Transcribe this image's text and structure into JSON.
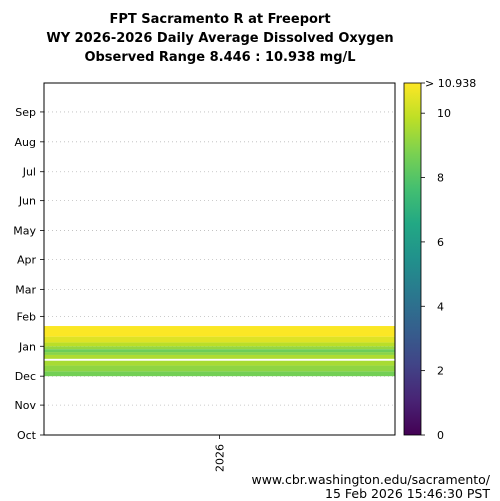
{
  "title": {
    "line1": "FPT Sacramento R at Freeport",
    "line2": "WY 2026-2026 Daily Average Dissolved Oxygen",
    "line3": "Observed Range 8.446 : 10.938 mg/L"
  },
  "footer": {
    "url": "www.cbr.washington.edu/sacramento/",
    "timestamp": "15 Feb 2026 15:46:30 PST"
  },
  "chart_data": {
    "type": "heatmap",
    "x": {
      "categories": [
        "2026"
      ]
    },
    "y": {
      "tick_labels": [
        "Oct",
        "Nov",
        "Dec",
        "Jan",
        "Feb",
        "Mar",
        "Apr",
        "May",
        "Jun",
        "Jul",
        "Aug",
        "Sep"
      ],
      "day_range": [
        0,
        365
      ]
    },
    "colorbar": {
      "colormap": "viridis",
      "range": [
        0,
        10.938
      ],
      "ticks": [
        0,
        2,
        4,
        6,
        8,
        10
      ],
      "max_label": "> 10.938"
    },
    "grid": "horizontal-dotted",
    "gap_days": [
      77,
      78
    ],
    "segments": [
      {
        "start_day": 61,
        "end_day": 66,
        "value": 8.6
      },
      {
        "start_day": 66,
        "end_day": 72,
        "value": 9.1
      },
      {
        "start_day": 72,
        "end_day": 77,
        "value": 9.5
      },
      {
        "start_day": 79,
        "end_day": 83,
        "value": 9.6
      },
      {
        "start_day": 83,
        "end_day": 86,
        "value": 9.0
      },
      {
        "start_day": 86,
        "end_day": 89,
        "value": 8.5
      },
      {
        "start_day": 89,
        "end_day": 92,
        "value": 9.2
      },
      {
        "start_day": 92,
        "end_day": 96,
        "value": 9.8
      },
      {
        "start_day": 96,
        "end_day": 102,
        "value": 10.4
      },
      {
        "start_day": 102,
        "end_day": 113,
        "value": 10.9
      }
    ]
  }
}
